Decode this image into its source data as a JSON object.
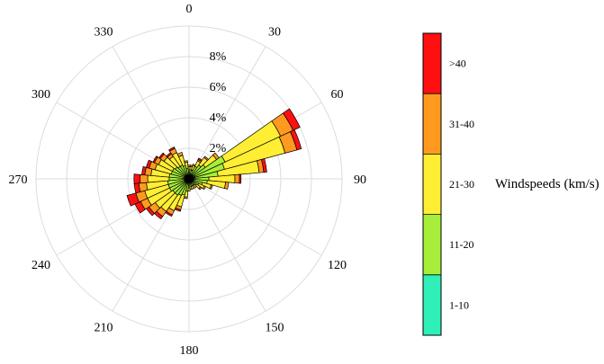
{
  "chart_data": {
    "type": "polar-bar",
    "title": "",
    "direction_ticks": [
      "0",
      "30",
      "60",
      "90",
      "120",
      "150",
      "180",
      "210",
      "240",
      "270",
      "300",
      "330"
    ],
    "radial_tick_labels": [
      "2%",
      "4%",
      "6%",
      "8%"
    ],
    "radial_ticks": [
      2,
      4,
      6,
      8
    ],
    "rmax": 10,
    "grid": true,
    "legend_placement": "right",
    "colorbar_label": "Windspeeds (km/s)",
    "bins": [
      {
        "label": "1-10",
        "color": "#2EF0B8"
      },
      {
        "label": "11-20",
        "color": "#A6EE3A"
      },
      {
        "label": "21-30",
        "color": "#FFEE33"
      },
      {
        "label": "31-40",
        "color": "#FF9A1F"
      },
      {
        "label": ">40",
        "color": "#FF1010"
      }
    ],
    "sector_width_deg": 10,
    "sectors": [
      {
        "dir": 0,
        "values": [
          0.2,
          0.4,
          0.2,
          0.1,
          0.0
        ]
      },
      {
        "dir": 10,
        "values": [
          0.2,
          0.4,
          0.2,
          0.1,
          0.0
        ]
      },
      {
        "dir": 20,
        "values": [
          0.2,
          0.4,
          0.3,
          0.1,
          0.0
        ]
      },
      {
        "dir": 30,
        "values": [
          0.3,
          0.6,
          0.4,
          0.1,
          0.1
        ]
      },
      {
        "dir": 40,
        "values": [
          0.3,
          0.8,
          0.6,
          0.1,
          0.0
        ]
      },
      {
        "dir": 50,
        "values": [
          0.3,
          1.0,
          0.9,
          0.2,
          0.0
        ]
      },
      {
        "dir": 60,
        "values": [
          0.4,
          2.2,
          4.0,
          0.9,
          0.5
        ]
      },
      {
        "dir": 70,
        "values": [
          0.4,
          2.0,
          4.1,
          0.8,
          0.3
        ]
      },
      {
        "dir": 80,
        "values": [
          0.4,
          1.5,
          2.7,
          0.3,
          0.2
        ]
      },
      {
        "dir": 90,
        "values": [
          0.3,
          1.0,
          1.7,
          0.3,
          0.1
        ]
      },
      {
        "dir": 100,
        "values": [
          0.3,
          0.9,
          1.2,
          0.2,
          0.0
        ]
      },
      {
        "dir": 110,
        "values": [
          0.3,
          0.6,
          0.6,
          0.1,
          0.0
        ]
      },
      {
        "dir": 120,
        "values": [
          0.2,
          0.5,
          0.4,
          0.1,
          0.0
        ]
      },
      {
        "dir": 130,
        "values": [
          0.2,
          0.4,
          0.3,
          0.1,
          0.0
        ]
      },
      {
        "dir": 140,
        "values": [
          0.2,
          0.3,
          0.2,
          0.0,
          0.0
        ]
      },
      {
        "dir": 150,
        "values": [
          0.2,
          0.3,
          0.2,
          0.0,
          0.0
        ]
      },
      {
        "dir": 160,
        "values": [
          0.2,
          0.3,
          0.2,
          0.0,
          0.0
        ]
      },
      {
        "dir": 170,
        "values": [
          0.2,
          0.3,
          0.2,
          0.0,
          0.0
        ]
      },
      {
        "dir": 180,
        "values": [
          0.2,
          0.4,
          0.2,
          0.0,
          0.0
        ]
      },
      {
        "dir": 190,
        "values": [
          0.2,
          0.6,
          0.4,
          0.1,
          0.0
        ]
      },
      {
        "dir": 200,
        "values": [
          0.3,
          0.8,
          0.8,
          0.2,
          0.1
        ]
      },
      {
        "dir": 210,
        "values": [
          0.3,
          0.9,
          1.1,
          0.3,
          0.1
        ]
      },
      {
        "dir": 220,
        "values": [
          0.3,
          1.0,
          1.3,
          0.4,
          0.2
        ]
      },
      {
        "dir": 230,
        "values": [
          0.3,
          1.0,
          1.4,
          0.5,
          0.2
        ]
      },
      {
        "dir": 240,
        "values": [
          0.3,
          1.1,
          1.6,
          0.5,
          0.4
        ]
      },
      {
        "dir": 250,
        "values": [
          0.3,
          1.1,
          1.6,
          0.6,
          0.6
        ]
      },
      {
        "dir": 260,
        "values": [
          0.3,
          1.1,
          1.4,
          0.5,
          0.3
        ]
      },
      {
        "dir": 270,
        "values": [
          0.3,
          1.0,
          1.4,
          0.5,
          0.4
        ]
      },
      {
        "dir": 280,
        "values": [
          0.3,
          1.0,
          1.2,
          0.4,
          0.2
        ]
      },
      {
        "dir": 290,
        "values": [
          0.3,
          0.9,
          1.1,
          0.4,
          0.2
        ]
      },
      {
        "dir": 300,
        "values": [
          0.3,
          0.9,
          1.0,
          0.3,
          0.1
        ]
      },
      {
        "dir": 310,
        "values": [
          0.3,
          0.8,
          0.9,
          0.3,
          0.1
        ]
      },
      {
        "dir": 320,
        "values": [
          0.3,
          0.7,
          0.8,
          0.2,
          0.1
        ]
      },
      {
        "dir": 330,
        "values": [
          0.3,
          0.7,
          0.9,
          0.3,
          0.1
        ]
      },
      {
        "dir": 340,
        "values": [
          0.3,
          0.6,
          0.7,
          0.2,
          0.0
        ]
      },
      {
        "dir": 350,
        "values": [
          0.2,
          0.5,
          0.4,
          0.1,
          0.0
        ]
      }
    ]
  }
}
